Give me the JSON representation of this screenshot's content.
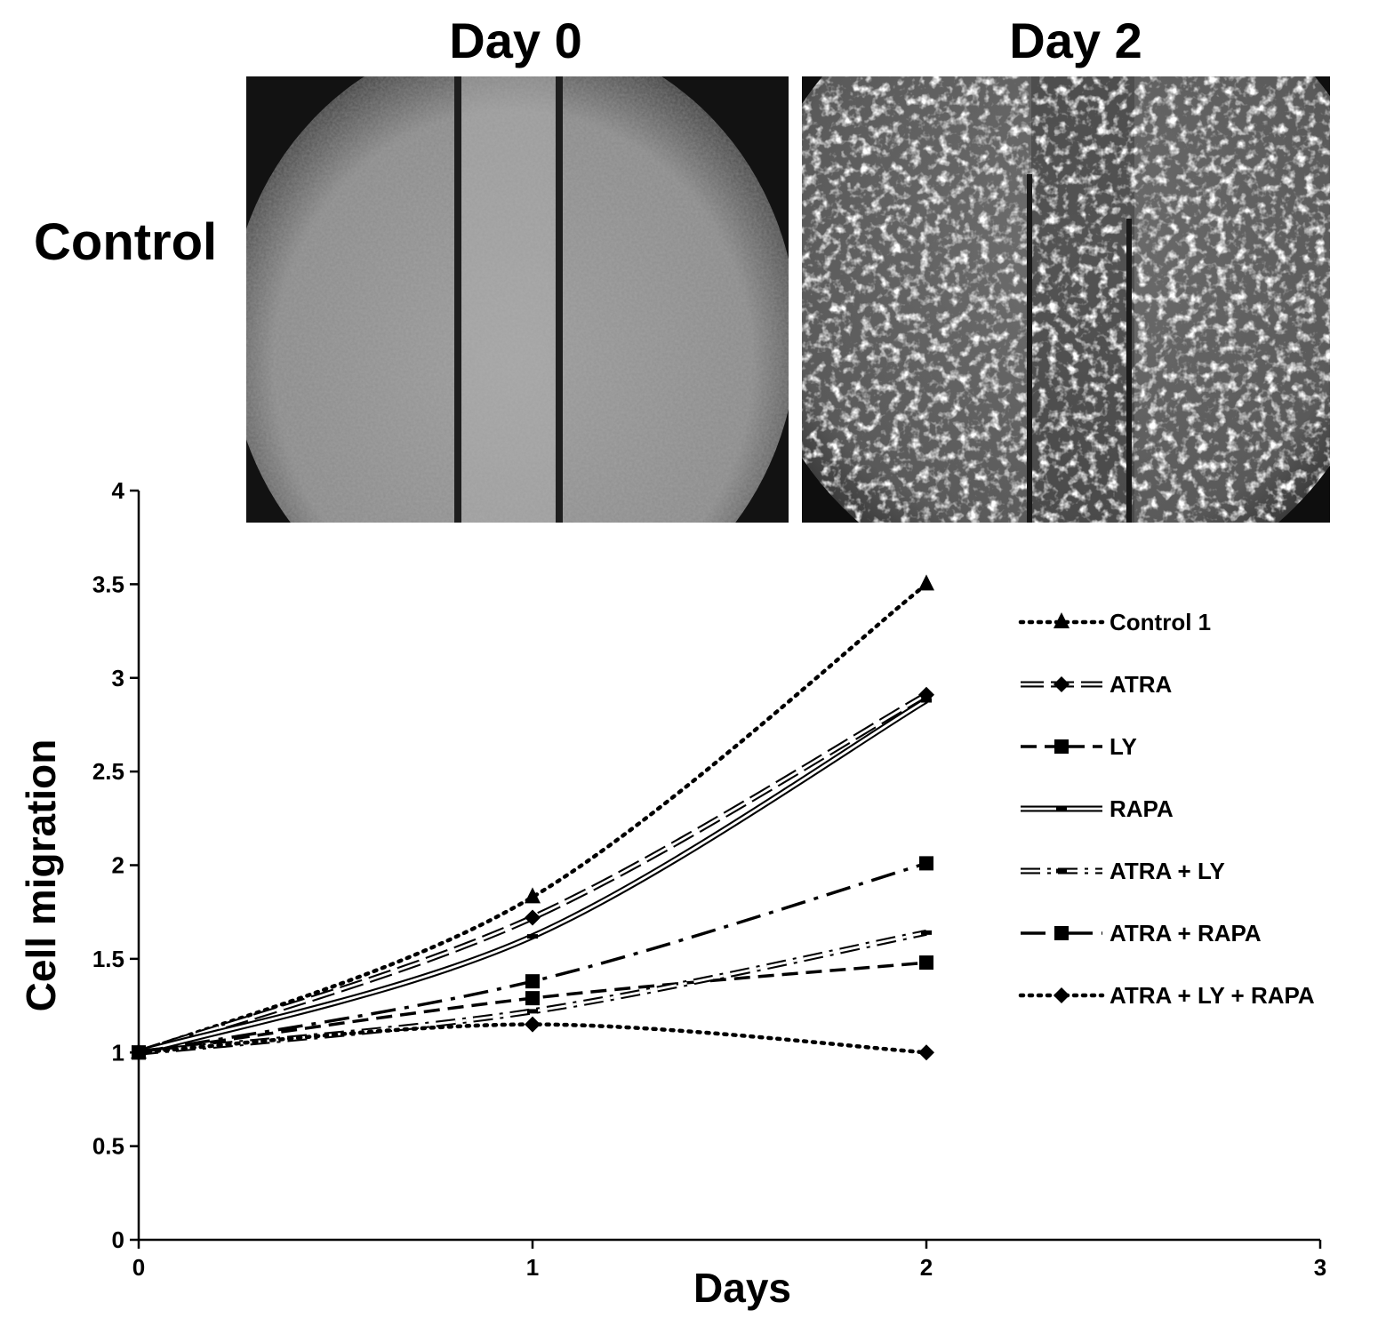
{
  "panel": {
    "col_headers": [
      "Day 0",
      "Day 2"
    ],
    "row_label": "Control"
  },
  "chart_data": {
    "type": "line",
    "title": "",
    "xlabel": "Days",
    "ylabel": "Cell migration",
    "xlim": [
      0,
      3
    ],
    "ylim": [
      0,
      4
    ],
    "xticks": [
      "0",
      "1",
      "2",
      "3"
    ],
    "yticks": [
      "0",
      "0.5",
      "1",
      "1.5",
      "2",
      "2.5",
      "3",
      "3.5",
      "4"
    ],
    "x": [
      0,
      1,
      2
    ],
    "grid": false,
    "legend_position": "right",
    "series": [
      {
        "name": "Control 1",
        "values": [
          1.0,
          1.83,
          3.5
        ],
        "marker": "triangle",
        "style": "dotted"
      },
      {
        "name": "ATRA",
        "values": [
          1.0,
          1.72,
          2.91
        ],
        "marker": "diamond",
        "style": "double-dashed"
      },
      {
        "name": "LY",
        "values": [
          1.0,
          1.29,
          1.48
        ],
        "marker": "square",
        "style": "dashed"
      },
      {
        "name": "RAPA",
        "values": [
          1.0,
          1.62,
          2.88
        ],
        "marker": "dash",
        "style": "double-solid"
      },
      {
        "name": "ATRA + LY",
        "values": [
          1.0,
          1.22,
          1.64
        ],
        "marker": "dash",
        "style": "double-dashdot"
      },
      {
        "name": "ATRA + RAPA",
        "values": [
          1.0,
          1.38,
          2.01
        ],
        "marker": "square",
        "style": "dashdot"
      },
      {
        "name": "ATRA + LY + RAPA",
        "values": [
          1.0,
          1.15,
          1.0
        ],
        "marker": "diamond",
        "style": "dotted"
      }
    ]
  }
}
